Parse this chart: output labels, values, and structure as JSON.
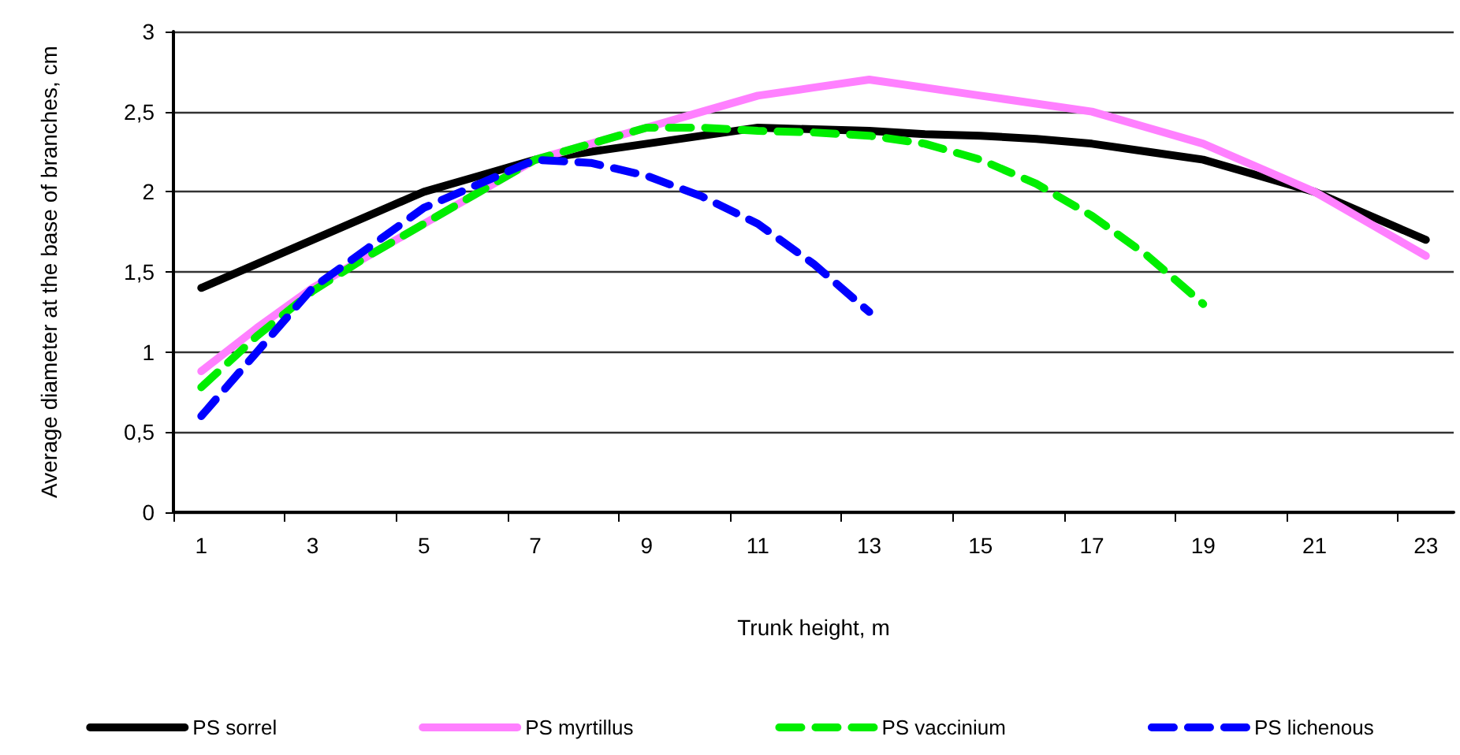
{
  "chart_data": {
    "type": "line",
    "xlabel": "Trunk height, m",
    "ylabel": "Average diameter at the base of branches, cm",
    "x": [
      1,
      2,
      3,
      4,
      5,
      6,
      7,
      8,
      9,
      10,
      11,
      12,
      13,
      14,
      15,
      16,
      17,
      18,
      19,
      20,
      21,
      22,
      23
    ],
    "xlim": [
      0.5,
      23.5
    ],
    "xticks": [
      {
        "value": 0.5,
        "label": null
      },
      1,
      {
        "value": 2.5,
        "label": null
      },
      3,
      {
        "value": 4.5,
        "label": null
      },
      5,
      {
        "value": 6.5,
        "label": null
      },
      7,
      {
        "value": 8.5,
        "label": null
      },
      9,
      {
        "value": 10.5,
        "label": null
      },
      11,
      {
        "value": 12.5,
        "label": null
      },
      13,
      {
        "value": 14.5,
        "label": null
      },
      15,
      {
        "value": 16.5,
        "label": null
      },
      17,
      {
        "value": 18.5,
        "label": null
      },
      19,
      {
        "value": 20.5,
        "label": null
      },
      21,
      {
        "value": 22.5,
        "label": null
      },
      23
    ],
    "series": [
      {
        "name": "PS sorrel",
        "color": "#000000",
        "line_style": "solid",
        "values": [
          1.4,
          1.55,
          1.7,
          1.85,
          2.0,
          2.1,
          2.2,
          2.25,
          2.3,
          2.35,
          2.4,
          2.39,
          2.38,
          2.36,
          2.35,
          2.33,
          2.3,
          2.25,
          2.2,
          2.1,
          2.0,
          1.85,
          1.7
        ]
      },
      {
        "name": "PS myrtillus",
        "color": "#ff80ff",
        "line_style": "solid",
        "values": [
          0.88,
          1.15,
          1.4,
          1.6,
          1.8,
          2.0,
          2.2,
          2.3,
          2.4,
          2.5,
          2.6,
          2.65,
          2.7,
          2.65,
          2.6,
          2.55,
          2.5,
          2.4,
          2.3,
          2.15,
          2.0,
          1.8,
          1.6
        ]
      },
      {
        "name": "PS vaccinium",
        "color": "#00ee00",
        "line_style": "dashed",
        "values": [
          0.78,
          1.1,
          1.38,
          1.6,
          1.8,
          2.0,
          2.2,
          2.3,
          2.4,
          2.4,
          2.38,
          2.37,
          2.35,
          2.3,
          2.2,
          2.05,
          1.85,
          1.6,
          1.3,
          null,
          null,
          null,
          null
        ]
      },
      {
        "name": "PS lichenous",
        "color": "#0000ff",
        "line_style": "dashed",
        "values": [
          0.6,
          1.0,
          1.4,
          1.65,
          1.9,
          2.05,
          2.2,
          2.18,
          2.1,
          1.97,
          1.8,
          1.55,
          1.25,
          null,
          null,
          null,
          null,
          null,
          null,
          null,
          null,
          null,
          null
        ]
      }
    ],
    "ylim": [
      0,
      3
    ],
    "yticks": [
      {
        "value": 0,
        "label": "0"
      },
      {
        "value": 0.5,
        "label": "0,5"
      },
      {
        "value": 1,
        "label": "1"
      },
      {
        "value": 1.5,
        "label": "1,5"
      },
      {
        "value": 2,
        "label": "2"
      },
      {
        "value": 2.5,
        "label": "2,5"
      },
      {
        "value": 3,
        "label": "3"
      }
    ],
    "grid": "y",
    "legend": "bottom",
    "marker": "none"
  }
}
